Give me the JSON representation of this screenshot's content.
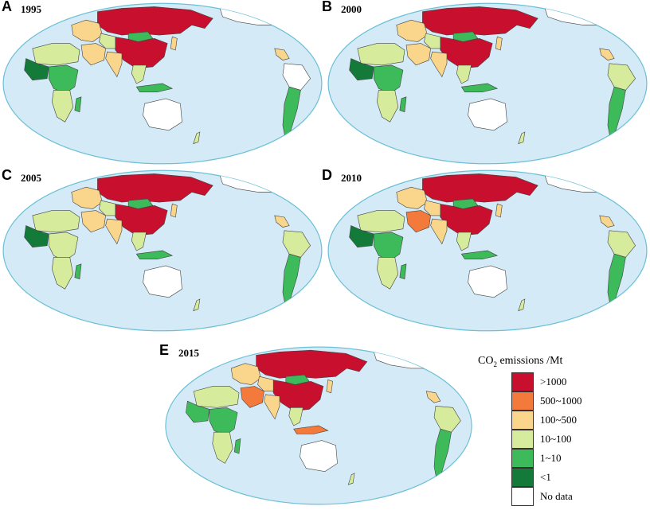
{
  "panels": [
    {
      "letter": "A",
      "year": "1995"
    },
    {
      "letter": "B",
      "year": "2000"
    },
    {
      "letter": "C",
      "year": "2005"
    },
    {
      "letter": "D",
      "year": "2010"
    },
    {
      "letter": "E",
      "year": "2015"
    }
  ],
  "legend": {
    "title_prefix": "CO",
    "title_sub": "2",
    "title_suffix": " emissions /Mt",
    "classes": [
      {
        "label": ">1000",
        "color": "#c8102e"
      },
      {
        "label": "500~1000",
        "color": "#f47a3c"
      },
      {
        "label": "100~500",
        "color": "#f9d68b"
      },
      {
        "label": "10~100",
        "color": "#d6ec9c"
      },
      {
        "label": "1~10",
        "color": "#3dbb5b"
      },
      {
        "label": "<1",
        "color": "#147a3a"
      },
      {
        "label": "No data",
        "color": "#ffffff"
      }
    ]
  },
  "colors": {
    "ocean": "#d4ebf7",
    "border": "#6cc0d6",
    "land_outline": "#444444"
  }
}
